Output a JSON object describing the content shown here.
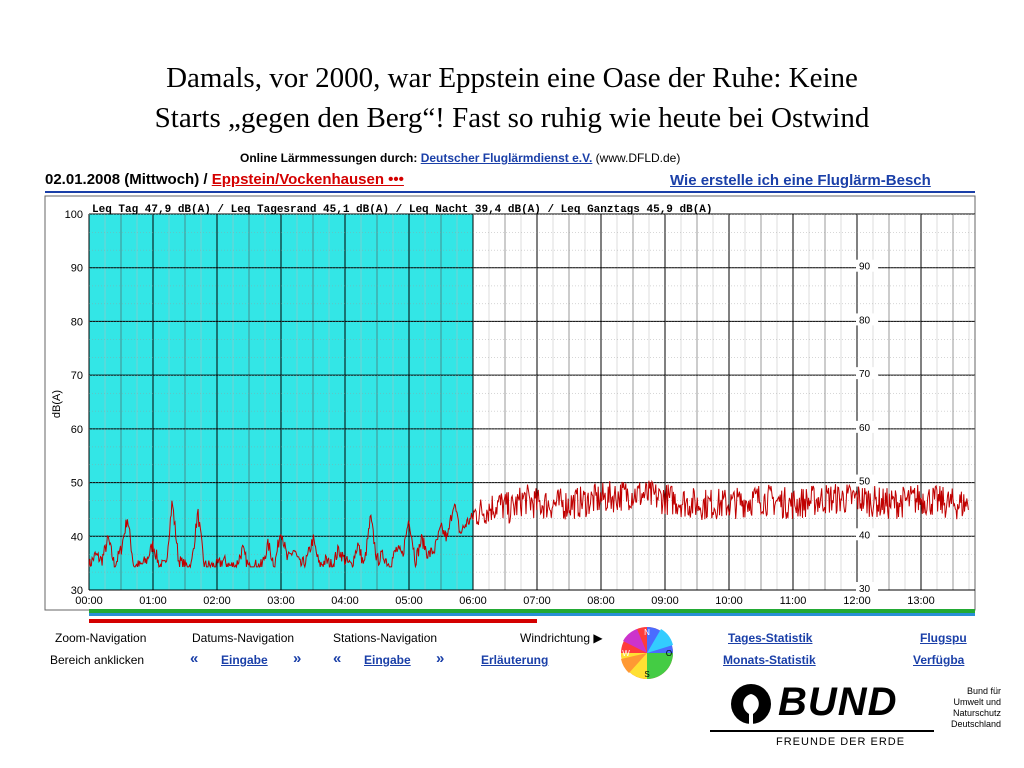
{
  "slide": {
    "title_line1": "Damals, vor 2000, war Eppstein eine Oase der Ruhe: Keine",
    "title_line2": "Starts „gegen den Berg“! Fast so ruhig wie heute bei Ostwind"
  },
  "header": {
    "online_label": "Online Lärmmessungen durch:",
    "provider_link": "Deutscher Fluglärmdienst e.V.",
    "provider_url_text": "(www.DFLD.de)",
    "date_text": "02.01.2008 (Mittwoch) /",
    "station_link": "Eppstein/Vockenhausen •••",
    "howto_link": "Wie erstelle ich eine Fluglärm-Besch"
  },
  "chart_data": {
    "type": "line",
    "ylabel": "dB(A)",
    "ylim": [
      30,
      100
    ],
    "left_ticks": [
      "100",
      "90",
      "80",
      "70",
      "60",
      "50",
      "40",
      "30"
    ],
    "right_ticks": [
      "90",
      "80",
      "70",
      "60",
      "50",
      "40",
      "30"
    ],
    "x_ticks": [
      "00:00",
      "01:00",
      "02:00",
      "03:00",
      "04:00",
      "05:00",
      "06:00",
      "07:00",
      "08:00",
      "09:00",
      "10:00",
      "11:00",
      "12:00",
      "13:00"
    ],
    "xlim": [
      0,
      13.75
    ],
    "night_end_hour": 6,
    "legend_text": "Leq Tag 47,9 dB(A)  /  Leq Tagesrand 45,1 dB(A)  /  Leq Nacht 39,4 dB(A)  /  Leq Ganztags 45,9 dB(A)",
    "series_color": "#c00000",
    "night_band_color": "#33e6e6",
    "noise_profile": [
      [
        0,
        35
      ],
      [
        0.1,
        37
      ],
      [
        0.2,
        36
      ],
      [
        0.3,
        40
      ],
      [
        0.4,
        35
      ],
      [
        0.5,
        38
      ],
      [
        0.6,
        44
      ],
      [
        0.7,
        35
      ],
      [
        0.8,
        35
      ],
      [
        0.9,
        36
      ],
      [
        1.0,
        39
      ],
      [
        1.1,
        35
      ],
      [
        1.2,
        35
      ],
      [
        1.3,
        47
      ],
      [
        1.4,
        36
      ],
      [
        1.5,
        35
      ],
      [
        1.6,
        35
      ],
      [
        1.7,
        45
      ],
      [
        1.8,
        35
      ],
      [
        1.9,
        35
      ],
      [
        2.0,
        35
      ],
      [
        2.1,
        36
      ],
      [
        2.2,
        35
      ],
      [
        2.3,
        35
      ],
      [
        2.4,
        38
      ],
      [
        2.5,
        34.5
      ],
      [
        2.6,
        35
      ],
      [
        2.7,
        35
      ],
      [
        2.8,
        39
      ],
      [
        2.9,
        35
      ],
      [
        3.0,
        42
      ],
      [
        3.1,
        36
      ],
      [
        3.2,
        38
      ],
      [
        3.3,
        35
      ],
      [
        3.4,
        36
      ],
      [
        3.5,
        40
      ],
      [
        3.6,
        35
      ],
      [
        3.7,
        36
      ],
      [
        3.8,
        35
      ],
      [
        3.9,
        38
      ],
      [
        4.0,
        36
      ],
      [
        4.1,
        35
      ],
      [
        4.2,
        39
      ],
      [
        4.3,
        35
      ],
      [
        4.4,
        44
      ],
      [
        4.5,
        36
      ],
      [
        4.6,
        37
      ],
      [
        4.7,
        35
      ],
      [
        4.8,
        38
      ],
      [
        4.9,
        37
      ],
      [
        5.0,
        44
      ],
      [
        5.1,
        36
      ],
      [
        5.2,
        40
      ],
      [
        5.3,
        37
      ],
      [
        5.4,
        38
      ],
      [
        5.5,
        42
      ],
      [
        5.6,
        40
      ],
      [
        5.7,
        47
      ],
      [
        5.8,
        41
      ],
      [
        5.9,
        43
      ],
      [
        6.0,
        44
      ],
      [
        6.2,
        45
      ],
      [
        6.4,
        46
      ],
      [
        6.6,
        45
      ],
      [
        6.8,
        47
      ],
      [
        7.0,
        46
      ],
      [
        7.5,
        46
      ],
      [
        8.0,
        47
      ],
      [
        8.5,
        48
      ],
      [
        9.0,
        47
      ],
      [
        9.5,
        46
      ],
      [
        10.0,
        46
      ],
      [
        10.5,
        47
      ],
      [
        11.0,
        46
      ],
      [
        11.5,
        47
      ],
      [
        12.0,
        47
      ],
      [
        12.5,
        46
      ],
      [
        13.0,
        47
      ],
      [
        13.5,
        46
      ],
      [
        13.75,
        46
      ]
    ]
  },
  "nav": {
    "zoom_label": "Zoom-Navigation",
    "zoom_sub": "Bereich anklicken",
    "datum_label": "Datums-Navigation",
    "datum_link": "Eingabe",
    "station_label": "Stations-Navigation",
    "station_link": "Eingabe",
    "wind_label": "Windrichtung ▶",
    "wind_link": "Erläuterung",
    "compass": [
      "N",
      "O",
      "S",
      "W"
    ],
    "tages_link": "Tages-Statistik",
    "monats_link": "Monats-Statistik",
    "flugspur_link": "Flugspu",
    "verfuegbar_link": "Verfügba",
    "prev_arrow": "«",
    "next_arrow": "»"
  },
  "logo": {
    "name": "BUND",
    "tagline": "FREUNDE DER ERDE",
    "side_text": [
      "Bund für",
      "Umwelt und",
      "Naturschutz",
      "Deutschland"
    ]
  }
}
